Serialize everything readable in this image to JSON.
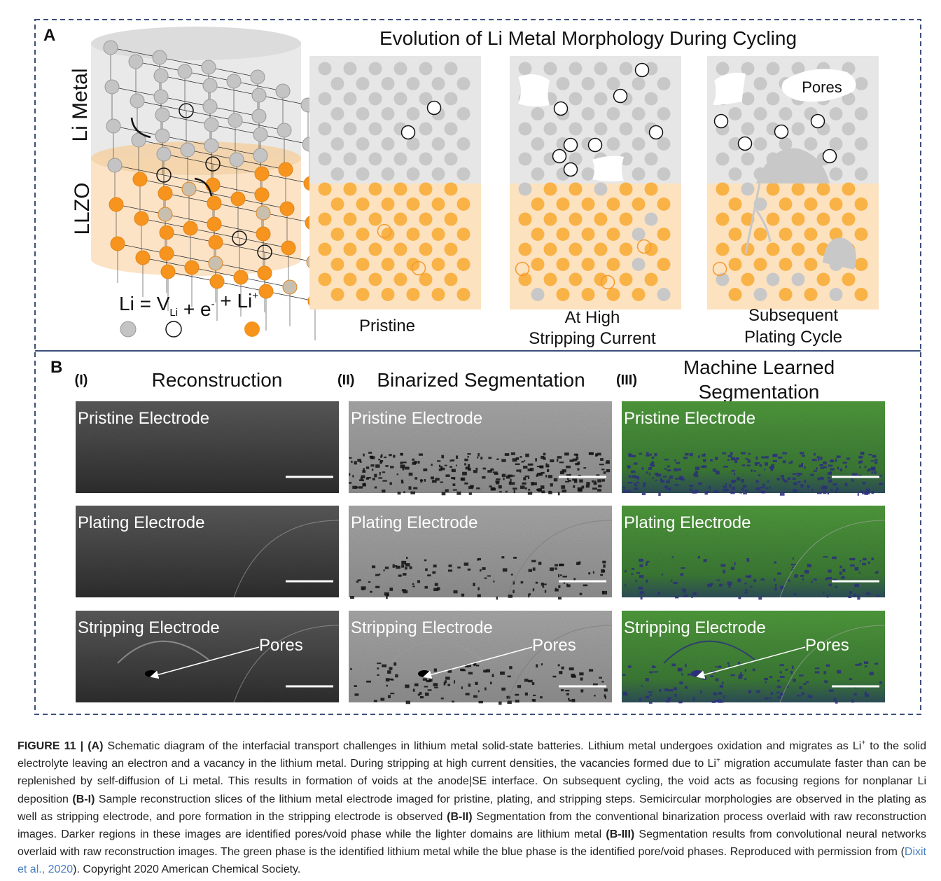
{
  "panel_a": {
    "label": "A",
    "title": "Evolution of Li Metal Morphology During Cycling",
    "side_labels": [
      "Li Metal",
      "LLZO"
    ],
    "equation": [
      {
        "text": "Li = V",
        "style": "normal"
      },
      {
        "text": "Li",
        "style": "sub"
      },
      {
        "text": " + e",
        "style": "normal"
      },
      {
        "text": "-",
        "style": "sup"
      },
      {
        "text": " + Li",
        "style": "normal"
      },
      {
        "text": "+",
        "style": "sup"
      }
    ],
    "panels": [
      {
        "caption": [
          "Pristine"
        ]
      },
      {
        "caption": [
          "At High",
          "Stripping Current"
        ]
      },
      {
        "caption": [
          "Subsequent",
          "Plating Cycle"
        ],
        "annotation": "Pores"
      }
    ]
  },
  "panel_b": {
    "label": "B",
    "columns": [
      {
        "numeral": "(I)",
        "title": [
          "Reconstruction"
        ]
      },
      {
        "numeral": "(II)",
        "title": [
          "Binarized Segmentation"
        ]
      },
      {
        "numeral": "(III)",
        "title": [
          "Machine Learned",
          "Segmentation"
        ]
      }
    ],
    "rows": [
      "Pristine Electrode",
      "Plating Electrode",
      "Stripping Electrode"
    ],
    "annotation": "Pores"
  },
  "caption": [
    {
      "text": "FIGURE 11 | (A)",
      "style": "bold"
    },
    {
      "text": " Schematic diagram of the interfacial transport challenges in lithium metal solid-state batteries. Lithium metal undergoes oxidation and migrates as Li",
      "style": "normal"
    },
    {
      "text": "+",
      "style": "sup"
    },
    {
      "text": " to the solid electrolyte leaving an electron and a vacancy in the lithium metal. During stripping at high current densities, the vacancies formed due to Li",
      "style": "normal"
    },
    {
      "text": "+",
      "style": "sup"
    },
    {
      "text": " migration accumulate faster than can be replenished by self-diffusion of Li metal. This results in formation of voids at the anode|SE interface. On subsequent cycling, the void acts as focusing regions for nonplanar Li deposition ",
      "style": "normal"
    },
    {
      "text": "(B-I)",
      "style": "bold"
    },
    {
      "text": " Sample reconstruction slices of the lithium metal electrode imaged for pristine, plating, and stripping steps. Semicircular morphologies are observed in the plating as well as stripping electrode, and pore formation in the stripping electrode is observed ",
      "style": "normal"
    },
    {
      "text": "(B-II)",
      "style": "bold"
    },
    {
      "text": " Segmentation from the conventional binarization process overlaid with raw reconstruction images. Darker regions in these images are identified pores/void phase while the lighter domains are lithium metal ",
      "style": "normal"
    },
    {
      "text": "(B-III)",
      "style": "bold"
    },
    {
      "text": " Segmentation results from convolutional neural networks overlaid with raw reconstruction images. The green phase is the identified lithium metal while the blue phase is the identified pore/void phases. Reproduced with permission from (",
      "style": "normal"
    },
    {
      "text": "Dixit et al., 2020",
      "style": "link"
    },
    {
      "text": "). Copyright 2020 American Chemical Society.",
      "style": "normal"
    }
  ]
}
